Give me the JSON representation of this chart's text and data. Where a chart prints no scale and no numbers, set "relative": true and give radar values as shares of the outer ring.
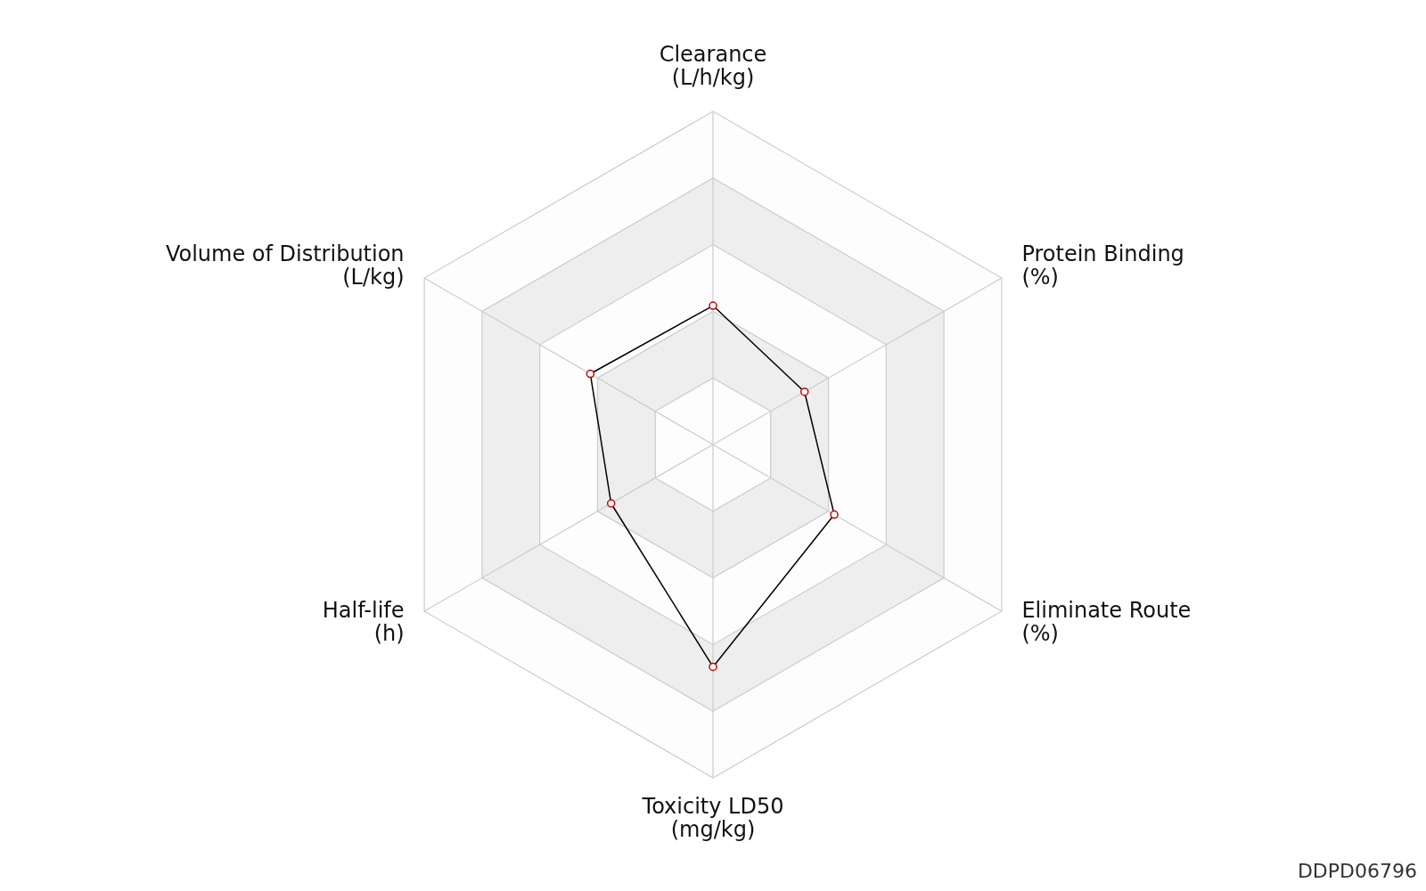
{
  "chart_data": {
    "type": "radar",
    "relative": true,
    "categories": [
      "Clearance\n(L/h/kg)",
      "Protein Binding\n(%)",
      "Eliminate Route\n(%)",
      "Toxicity LD50\n(mg/kg)",
      "Half-life\n(h)",
      "Volume of Distribution\n(L/kg)"
    ],
    "series": [
      {
        "color": "#000000",
        "values": [
          0.417,
          0.317,
          0.42,
          0.667,
          0.353,
          0.425
        ]
      }
    ],
    "marker": "circle",
    "line_style": "solid",
    "annotations": [
      "DDPD06796"
    ]
  }
}
